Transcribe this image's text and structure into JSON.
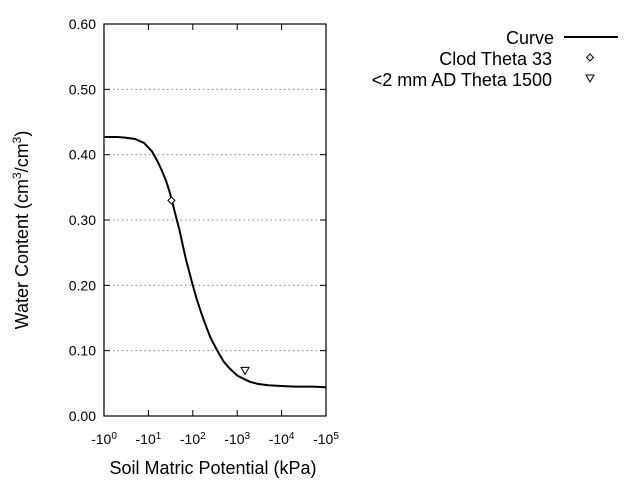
{
  "chart_data": {
    "type": "line",
    "xlabel": "Soil Matric Potential (kPa)",
    "ylabel": "Water Content (cm3/cm3)",
    "x_scale": "log-negative",
    "xlim": [
      -1,
      -100000
    ],
    "ylim": [
      0,
      0.6
    ],
    "grid": "horizontal dotted",
    "legend_placement": "right, outside plot",
    "yticks": [
      0.0,
      0.1,
      0.2,
      0.3,
      0.4,
      0.5,
      0.6
    ],
    "ytick_labels": [
      "0.00",
      "0.10",
      "0.20",
      "0.30",
      "0.40",
      "0.50",
      "0.60"
    ],
    "xticks": [
      {
        "value": -1,
        "base": "-10",
        "exp": "0"
      },
      {
        "value": -10,
        "base": "-10",
        "exp": "1"
      },
      {
        "value": -100,
        "base": "-10",
        "exp": "2"
      },
      {
        "value": -1000,
        "base": "-10",
        "exp": "3"
      },
      {
        "value": -10000,
        "base": "-10",
        "exp": "4"
      },
      {
        "value": -100000,
        "base": "-10",
        "exp": "5"
      }
    ],
    "series": [
      {
        "name": "Curve",
        "style": "solid-line",
        "color": "#000000",
        "x": [
          -1,
          -2,
          -3,
          -5,
          -8,
          -12,
          -16,
          -20,
          -25,
          -30,
          -35,
          -40,
          -50,
          -60,
          -70,
          -80,
          -100,
          -125,
          -160,
          -200,
          -250,
          -320,
          -400,
          -500,
          -650,
          -800,
          -1000,
          -1300,
          -1600,
          -2000,
          -3000,
          -5000,
          -10000,
          -20000,
          -50000,
          -100000
        ],
        "y": [
          0.427,
          0.427,
          0.426,
          0.424,
          0.418,
          0.405,
          0.39,
          0.376,
          0.36,
          0.343,
          0.326,
          0.31,
          0.285,
          0.26,
          0.24,
          0.225,
          0.2,
          0.177,
          0.155,
          0.137,
          0.12,
          0.106,
          0.094,
          0.083,
          0.074,
          0.068,
          0.062,
          0.058,
          0.055,
          0.052,
          0.049,
          0.047,
          0.046,
          0.045,
          0.045,
          0.044
        ]
      },
      {
        "name": "Clod Theta 33",
        "style": "diamond-marker",
        "color": "#000000",
        "x": [
          -33
        ],
        "y": [
          0.33
        ]
      },
      {
        "name": "<2 mm AD Theta 1500",
        "style": "triangle-marker",
        "color": "#000000",
        "x": [
          -1500
        ],
        "y": [
          0.069
        ]
      }
    ]
  }
}
